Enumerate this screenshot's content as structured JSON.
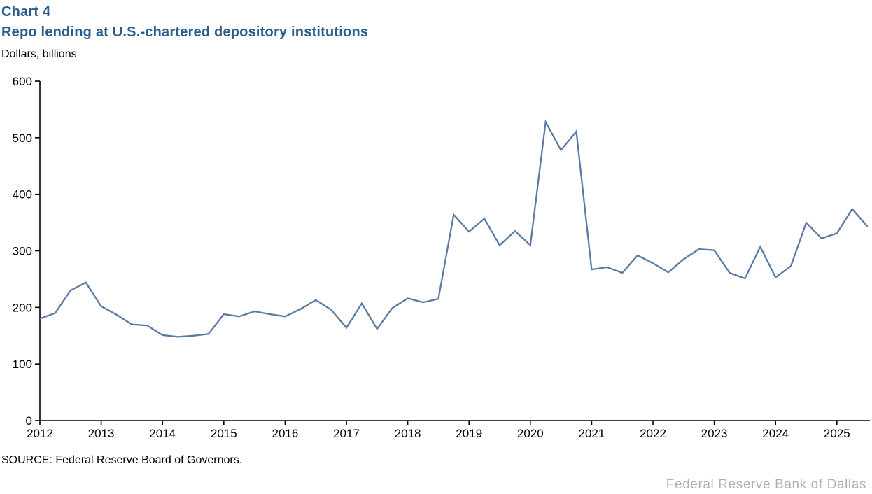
{
  "header": {
    "chart_label": "Chart 4",
    "title": "Repo lending at U.S.-chartered depository institutions",
    "subtitle": "Dollars, billions",
    "title_color": "#2a5d8f"
  },
  "source_note": "SOURCE: Federal Reserve Board of Governors.",
  "footer": {
    "brand": "Federal Reserve Bank of Dallas",
    "color": "#b1b1b3"
  },
  "chart_data": {
    "type": "line",
    "title": "Repo lending at U.S.-chartered depository institutions",
    "ylabel": "Dollars, billions",
    "xlabel": "",
    "frequency": "quarterly",
    "x_start_year": 2012,
    "points_per_year": 4,
    "x_tick_labels": [
      "2012",
      "2013",
      "2014",
      "2015",
      "2016",
      "2017",
      "2018",
      "2019",
      "2020",
      "2021",
      "2022",
      "2023",
      "2024",
      "2025"
    ],
    "y_ticks": [
      0,
      100,
      200,
      300,
      400,
      500,
      600
    ],
    "ylim": [
      0,
      600
    ],
    "grid": false,
    "legend": "none",
    "line_color": "#5b7ba6",
    "axis_color": "#000000",
    "series": [
      {
        "name": "Repo lending at U.S.-chartered depository institutions",
        "values": [
          180,
          190,
          230,
          244,
          202,
          187,
          170,
          168,
          151,
          148,
          150,
          153,
          188,
          184,
          193,
          188,
          184,
          197,
          213,
          196,
          164,
          207,
          162,
          199,
          216,
          209,
          215,
          364,
          334,
          357,
          310,
          335,
          310,
          528,
          478,
          511,
          267,
          271,
          261,
          292,
          278,
          262,
          285,
          303,
          301,
          261,
          251,
          307,
          253,
          273,
          350,
          322,
          331,
          374,
          343
        ]
      }
    ]
  }
}
